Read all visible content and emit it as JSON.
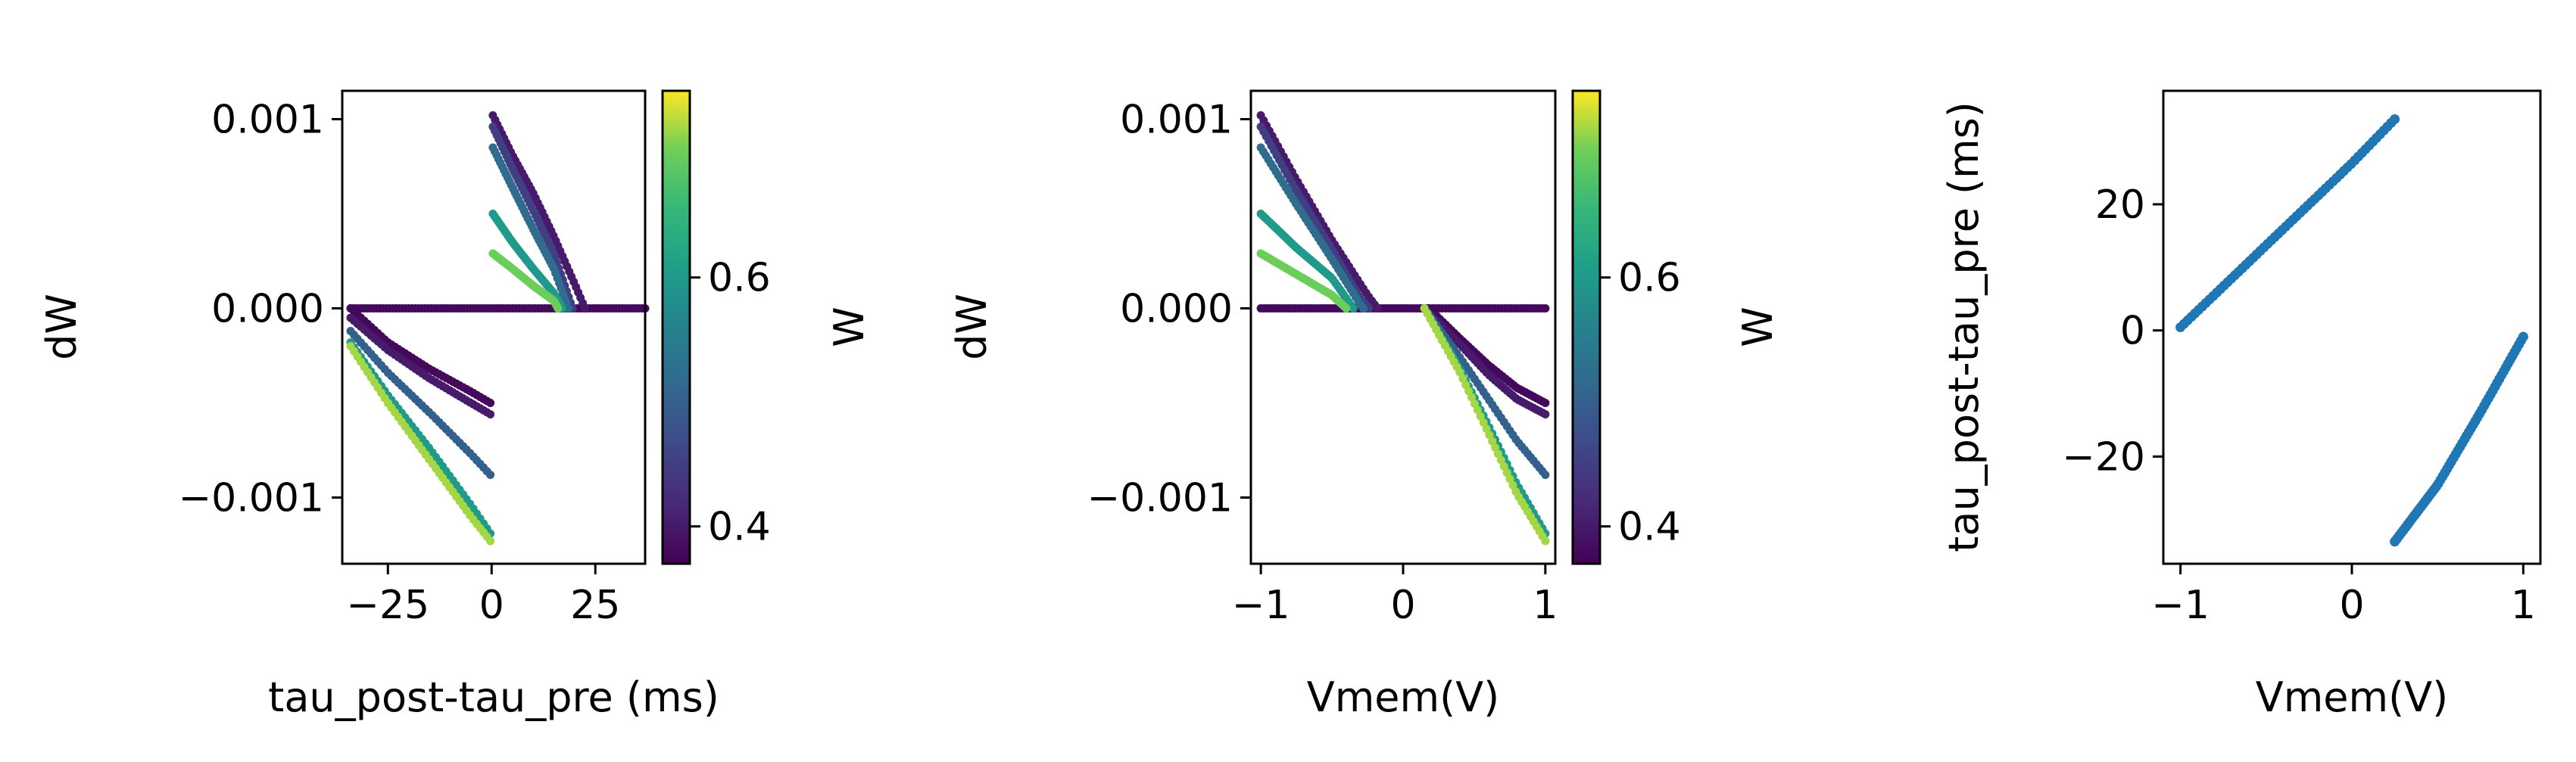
{
  "chart_data": [
    {
      "type": "scatter",
      "xlabel": "tau_post-tau_pre (ms)",
      "ylabel": "dW",
      "xlim": [
        -36,
        37
      ],
      "ylim": [
        -0.00135,
        0.00115
      ],
      "xticks": [
        -25,
        0,
        25
      ],
      "xtick_labels": [
        "−25",
        "0",
        "25"
      ],
      "yticks": [
        -0.001,
        0.0,
        0.001
      ],
      "ytick_labels": [
        "−0.001",
        "0.000",
        "0.001"
      ],
      "grid": false,
      "colormap": "viridis",
      "colorbar": {
        "label": "W",
        "range": [
          0.37,
          0.75
        ],
        "ticks": [
          0.4,
          0.6
        ],
        "tick_labels": [
          "0.4",
          "0.6"
        ]
      },
      "point_color_encodes": "W",
      "series": [
        {
          "points_per_curve": 42,
          "curves": [
            {
              "w": 0.4,
              "points": [
                [
                  0.3,
                  0.00102
                ],
                [
                  5,
                  0.00081
                ],
                [
                  10,
                  0.00061
                ],
                [
                  15,
                  0.00038
                ],
                [
                  20,
                  0.00013
                ],
                [
                  22.5,
                  0.0
                ]
              ]
            },
            {
              "w": 0.45,
              "points": [
                [
                  0.3,
                  0.00096
                ],
                [
                  5,
                  0.00074
                ],
                [
                  10,
                  0.00052
                ],
                [
                  15,
                  0.00029
                ],
                [
                  19.5,
                  0.0
                ]
              ]
            },
            {
              "w": 0.52,
              "points": [
                [
                  0.3,
                  0.00085
                ],
                [
                  5,
                  0.00064
                ],
                [
                  10,
                  0.00042
                ],
                [
                  15,
                  0.00021
                ],
                [
                  18.5,
                  0.0
                ]
              ]
            },
            {
              "w": 0.6,
              "points": [
                [
                  0.3,
                  0.0005
                ],
                [
                  5,
                  0.00035
                ],
                [
                  10,
                  0.00021
                ],
                [
                  15,
                  8e-05
                ],
                [
                  17,
                  0.0
                ]
              ]
            },
            {
              "w": 0.7,
              "points": [
                [
                  0.3,
                  0.00029
                ],
                [
                  5,
                  0.00021
                ],
                [
                  10,
                  0.00012
                ],
                [
                  15,
                  4e-05
                ],
                [
                  16,
                  0.0
                ]
              ]
            },
            {
              "w": 0.38,
              "points": [
                [
                  -34,
                  0.0
                ],
                [
                  -25,
                  -0.00018
                ],
                [
                  -15,
                  -0.00032
                ],
                [
                  -5,
                  -0.00044
                ],
                [
                  -0.3,
                  -0.0005
                ]
              ]
            },
            {
              "w": 0.4,
              "points": [
                [
                  -34,
                  -5e-05
                ],
                [
                  -25,
                  -0.00022
                ],
                [
                  -15,
                  -0.00037
                ],
                [
                  -5,
                  -0.0005
                ],
                [
                  -0.3,
                  -0.00056
                ]
              ]
            },
            {
              "w": 0.5,
              "points": [
                [
                  -34,
                  -0.00012
                ],
                [
                  -25,
                  -0.00034
                ],
                [
                  -15,
                  -0.00055
                ],
                [
                  -5,
                  -0.00077
                ],
                [
                  -0.3,
                  -0.00088
                ]
              ]
            },
            {
              "w": 0.6,
              "points": [
                [
                  -34,
                  -0.00018
                ],
                [
                  -25,
                  -0.00046
                ],
                [
                  -15,
                  -0.00074
                ],
                [
                  -5,
                  -0.00104
                ],
                [
                  -0.3,
                  -0.00119
                ]
              ]
            },
            {
              "w": 0.72,
              "points": [
                [
                  -34,
                  -0.0002
                ],
                [
                  -25,
                  -0.0005
                ],
                [
                  -15,
                  -0.0008
                ],
                [
                  -5,
                  -0.0011
                ],
                [
                  -0.3,
                  -0.00123
                ]
              ]
            }
          ],
          "baseline": {
            "w": 0.38,
            "x_range": [
              -34,
              37
            ],
            "y": 0.0
          }
        }
      ]
    },
    {
      "type": "scatter",
      "xlabel": "Vmem(V)",
      "ylabel": "dW",
      "xlim": [
        -1.07,
        1.07
      ],
      "ylim": [
        -0.00135,
        0.00115
      ],
      "xticks": [
        -1,
        0,
        1
      ],
      "xtick_labels": [
        "−1",
        "0",
        "1"
      ],
      "yticks": [
        -0.001,
        0.0,
        0.001
      ],
      "ytick_labels": [
        "−0.001",
        "0.000",
        "0.001"
      ],
      "grid": false,
      "colormap": "viridis",
      "colorbar": {
        "label": "W",
        "range": [
          0.37,
          0.75
        ],
        "ticks": [
          0.4,
          0.6
        ],
        "tick_labels": [
          "0.4",
          "0.6"
        ]
      },
      "point_color_encodes": "W",
      "series": [
        {
          "points_per_curve": 42,
          "curves": [
            {
              "w": 0.4,
              "points": [
                [
                  -1.0,
                  0.00102
                ],
                [
                  -0.75,
                  0.00068
                ],
                [
                  -0.5,
                  0.00036
                ],
                [
                  -0.25,
                  7e-05
                ],
                [
                  -0.18,
                  0.0
                ]
              ]
            },
            {
              "w": 0.45,
              "points": [
                [
                  -1.0,
                  0.00096
                ],
                [
                  -0.75,
                  0.00062
                ],
                [
                  -0.5,
                  0.00031
                ],
                [
                  -0.3,
                  5e-05
                ],
                [
                  -0.24,
                  0.0
                ]
              ]
            },
            {
              "w": 0.52,
              "points": [
                [
                  -1.0,
                  0.00085
                ],
                [
                  -0.75,
                  0.00055
                ],
                [
                  -0.5,
                  0.00026
                ],
                [
                  -0.3,
                  2e-05
                ],
                [
                  -0.28,
                  0.0
                ]
              ]
            },
            {
              "w": 0.6,
              "points": [
                [
                  -1.0,
                  0.0005
                ],
                [
                  -0.75,
                  0.00032
                ],
                [
                  -0.5,
                  0.00016
                ],
                [
                  -0.35,
                  0.0
                ]
              ]
            },
            {
              "w": 0.7,
              "points": [
                [
                  -1.0,
                  0.00029
                ],
                [
                  -0.75,
                  0.00018
                ],
                [
                  -0.5,
                  7e-05
                ],
                [
                  -0.4,
                  0.0
                ]
              ]
            },
            {
              "w": 0.38,
              "points": [
                [
                  0.18,
                  0.0
                ],
                [
                  0.4,
                  -0.00016
                ],
                [
                  0.6,
                  -0.0003
                ],
                [
                  0.8,
                  -0.00042
                ],
                [
                  1.0,
                  -0.0005
                ]
              ]
            },
            {
              "w": 0.4,
              "points": [
                [
                  0.15,
                  0.0
                ],
                [
                  0.4,
                  -0.00019
                ],
                [
                  0.6,
                  -0.00035
                ],
                [
                  0.8,
                  -0.00048
                ],
                [
                  1.0,
                  -0.00056
                ]
              ]
            },
            {
              "w": 0.5,
              "points": [
                [
                  0.15,
                  0.0
                ],
                [
                  0.4,
                  -0.00026
                ],
                [
                  0.6,
                  -0.00048
                ],
                [
                  0.8,
                  -0.0007
                ],
                [
                  1.0,
                  -0.00088
                ]
              ]
            },
            {
              "w": 0.6,
              "points": [
                [
                  0.15,
                  0.0
                ],
                [
                  0.4,
                  -0.00032
                ],
                [
                  0.6,
                  -0.00062
                ],
                [
                  0.8,
                  -0.00093
                ],
                [
                  1.0,
                  -0.00119
                ]
              ]
            },
            {
              "w": 0.72,
              "points": [
                [
                  0.15,
                  0.0
                ],
                [
                  0.4,
                  -0.00034
                ],
                [
                  0.6,
                  -0.00066
                ],
                [
                  0.8,
                  -0.00098
                ],
                [
                  1.0,
                  -0.00123
                ]
              ]
            }
          ],
          "baseline": {
            "w": 0.38,
            "x_range": [
              -1.0,
              1.0
            ],
            "y": 0.0
          }
        }
      ]
    },
    {
      "type": "scatter",
      "xlabel": "Vmem(V)",
      "ylabel": "tau_post-tau_pre (ms)",
      "xlim": [
        -1.1,
        1.1
      ],
      "ylim": [
        -37,
        38
      ],
      "xticks": [
        -1,
        0,
        1
      ],
      "xtick_labels": [
        "−1",
        "0",
        "1"
      ],
      "yticks": [
        -20,
        0,
        20
      ],
      "ytick_labels": [
        "−20",
        "0",
        "20"
      ],
      "grid": false,
      "point_color": "#1f77b4",
      "series": [
        {
          "points_per_curve": 60,
          "curves": [
            {
              "points": [
                [
                  -1.0,
                  0.5
                ],
                [
                  -0.75,
                  7
                ],
                [
                  -0.5,
                  13.5
                ],
                [
                  -0.25,
                  20
                ],
                [
                  0.0,
                  26.5
                ],
                [
                  0.25,
                  33.5
                ]
              ]
            },
            {
              "points": [
                [
                  0.25,
                  -33.5
                ],
                [
                  0.5,
                  -24.5
                ],
                [
                  0.75,
                  -13
                ],
                [
                  1.0,
                  -1
                ]
              ]
            }
          ]
        }
      ]
    }
  ]
}
